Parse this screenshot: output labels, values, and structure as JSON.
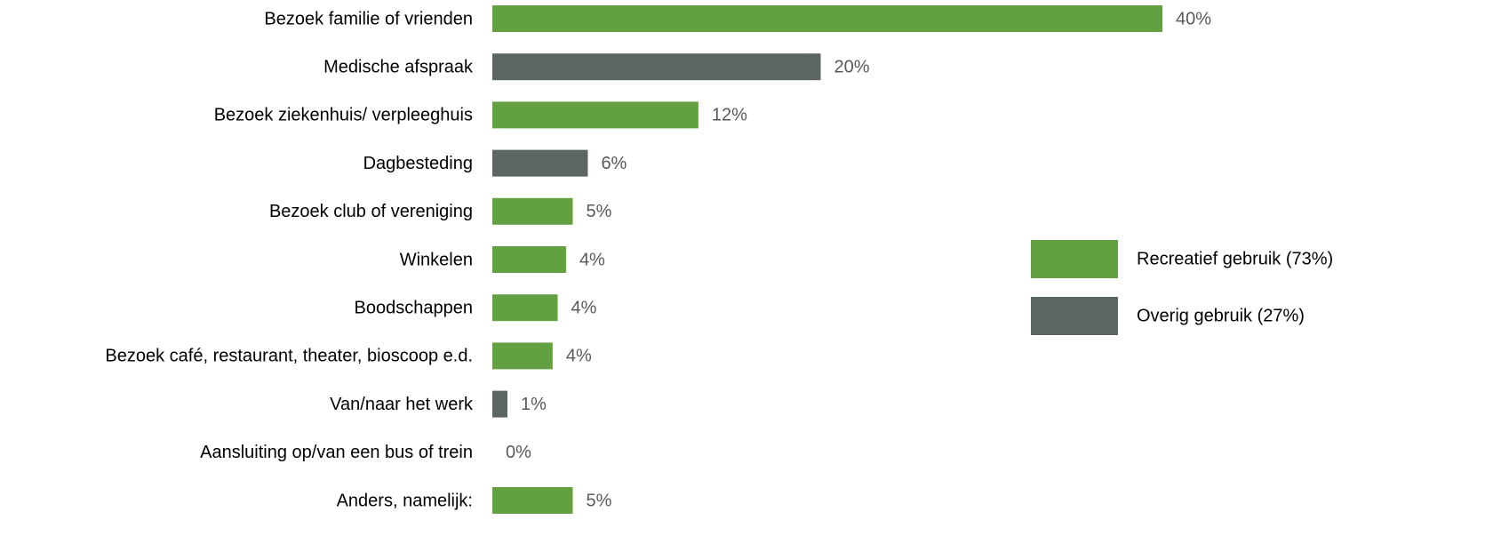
{
  "chart_data": {
    "type": "bar",
    "orientation": "horizontal",
    "categories": [
      "Bezoek familie of vrienden",
      "Medische afspraak",
      "Bezoek ziekenhuis/ verpleeghuis",
      "Dagbesteding",
      "Bezoek club of vereniging",
      "Winkelen",
      "Boodschappen",
      "Bezoek café, restaurant, theater, bioscoop e.d.",
      "Van/naar het werk",
      "Aansluiting op/van een bus of trein",
      "Anders, namelijk:"
    ],
    "values": [
      40,
      19.6,
      12.3,
      5.7,
      4.8,
      4.4,
      3.9,
      3.6,
      0.9,
      0,
      4.8
    ],
    "value_labels": [
      "40%",
      "20%",
      "12%",
      "6%",
      "5%",
      "4%",
      "4%",
      "4%",
      "1%",
      "0%",
      "5%"
    ],
    "colors": [
      "#63a042",
      "#5b6563",
      "#63a042",
      "#5b6563",
      "#63a042",
      "#63a042",
      "#63a042",
      "#63a042",
      "#5b6563",
      "#5b6563",
      "#63a042"
    ],
    "legend": [
      {
        "label": "Recreatief gebruik (73%)",
        "color": "#63a042"
      },
      {
        "label": "Overig gebruik (27%)",
        "color": "#5b6563"
      }
    ],
    "xlim": [
      0,
      40
    ]
  }
}
